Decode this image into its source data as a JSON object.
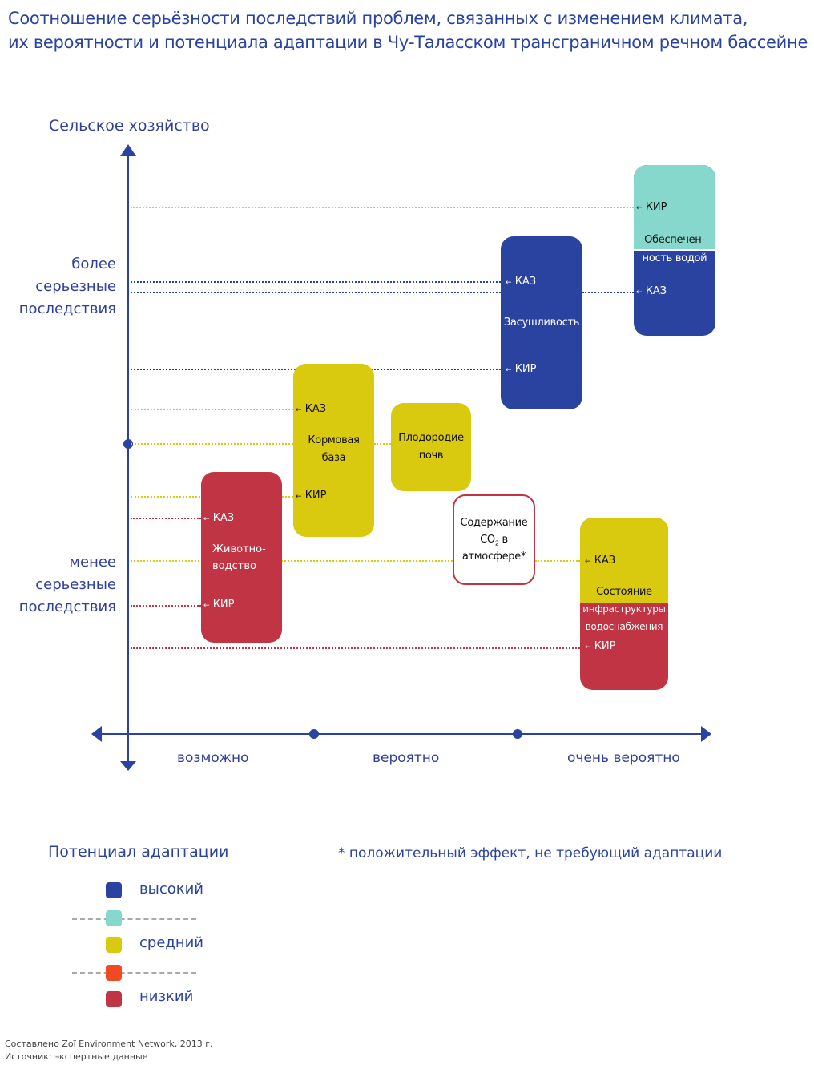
{
  "title": [
    "Соотношение серьёзности последствий проблем, связанных с  изменением климата,",
    "их вероятности и потенциала адаптации в Чу-Таласском трансграничном речном бассейне"
  ],
  "colors": {
    "high": "#2a43a0",
    "high_mid": "#86d8cc",
    "medium": "#d9c90f",
    "mid_low": "#f04a23",
    "low": "#c03444",
    "text": "#2f3f9e"
  },
  "y_axis": {
    "title": "Сельское хозяйство",
    "upper": [
      "более",
      "серьезные",
      "последствия"
    ],
    "lower": [
      "менее",
      "серьезные",
      "последствия"
    ]
  },
  "x_axis": {
    "labels": [
      "возможно",
      "вероятно",
      "очень вероятно"
    ]
  },
  "tags": {
    "kaz": "КАЗ",
    "kir": "КИР"
  },
  "arrow": "←",
  "issues": {
    "water": {
      "lines": [
        "Обеспечен-",
        "ность водой"
      ],
      "kir": "high_mid",
      "kaz": "high"
    },
    "drought": {
      "label": "Засушливость",
      "kaz": "high",
      "kir": "high"
    },
    "feed": {
      "lines": [
        "Кормовая",
        "база"
      ],
      "kaz": "medium",
      "kir": "medium"
    },
    "soil": {
      "lines": [
        "Плодородие",
        "почв"
      ],
      "potential": "medium"
    },
    "livestock": {
      "lines": [
        "Животно-",
        "водство"
      ],
      "kaz": "low",
      "kir": "low"
    },
    "co2": {
      "line1": "Содержание",
      "co": "CO",
      "sub": "2",
      "b": " в",
      "line3": "атмосфере*"
    },
    "infra": {
      "lines": [
        "Состояние",
        "инфраструктуры",
        "водоснабжения"
      ],
      "kaz": "medium",
      "kir": "low"
    }
  },
  "legend": {
    "title": "Потенциал адаптации",
    "items": [
      "высокий",
      "средний",
      "низкий"
    ]
  },
  "note": "* положительный эффект, не требующий адаптации",
  "footer": [
    "Составлено Zoï Environment Network, 2013 г.",
    "Источник: экспертные данные"
  ]
}
